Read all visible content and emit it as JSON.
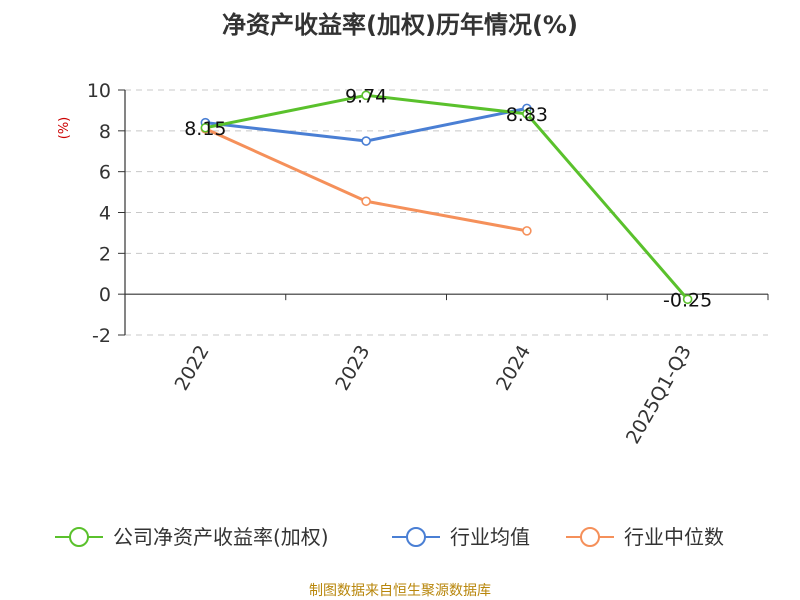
{
  "chart_data": {
    "type": "line",
    "title": "净资产收益率(加权)历年情况(%)",
    "ylabel": "(%)",
    "xlabel": "",
    "categories": [
      "2022",
      "2023",
      "2024",
      "2025Q1-Q3"
    ],
    "ylim": [
      -2,
      10
    ],
    "yticks": [
      -2,
      0,
      2,
      4,
      6,
      8,
      10
    ],
    "grid": true,
    "legend_position": "bottom",
    "series": [
      {
        "name": "公司净资产收益率(加权)",
        "color": "#5ac12c",
        "values": [
          8.15,
          9.74,
          8.83,
          -0.25
        ],
        "labels": [
          "8.15",
          "9.74",
          "8.83",
          "-0.25"
        ]
      },
      {
        "name": "行业均值",
        "color": "#4a7fd4",
        "values": [
          8.4,
          7.5,
          9.1,
          null
        ],
        "labels": null
      },
      {
        "name": "行业中位数",
        "color": "#f5905a",
        "values": [
          8.1,
          4.55,
          3.1,
          null
        ],
        "labels": null
      }
    ],
    "source": "制图数据来自恒生聚源数据库"
  }
}
